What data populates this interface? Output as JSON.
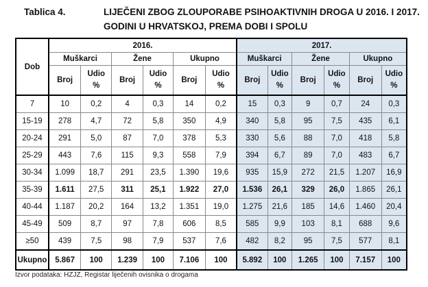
{
  "title": {
    "number": "Tablica 4.",
    "line1": "LIJEČENI ZBOG ZLOUPORABE PSIHOAKTIVNIH DROGA U 2016. I 2017.",
    "line2": "GODINI U HRVATSKOJ, PREMA DOBI I SPOLU"
  },
  "header": {
    "dob": "Dob",
    "years": [
      "2016.",
      "2017."
    ],
    "groups": [
      "Muškarci",
      "Žene",
      "Ukupno"
    ],
    "broj": "Broj",
    "udio": "Udio",
    "pct": "%"
  },
  "highlight_color": "#dce6f1",
  "rows": [
    {
      "dob": "7",
      "v": [
        "10",
        "0,2",
        "4",
        "0,3",
        "14",
        "0,2",
        "15",
        "0,3",
        "9",
        "0,7",
        "24",
        "0,3"
      ]
    },
    {
      "dob": "15-19",
      "v": [
        "278",
        "4,7",
        "72",
        "5,8",
        "350",
        "4,9",
        "340",
        "5,8",
        "95",
        "7,5",
        "435",
        "6,1"
      ]
    },
    {
      "dob": "20-24",
      "v": [
        "291",
        "5,0",
        "87",
        "7,0",
        "378",
        "5,3",
        "330",
        "5,6",
        "88",
        "7,0",
        "418",
        "5,8"
      ]
    },
    {
      "dob": "25-29",
      "v": [
        "443",
        "7,6",
        "115",
        "9,3",
        "558",
        "7,9",
        "394",
        "6,7",
        "89",
        "7,0",
        "483",
        "6,7"
      ]
    },
    {
      "dob": "30-34",
      "v": [
        "1.099",
        "18,7",
        "291",
        "23,5",
        "1.390",
        "19,6",
        "935",
        "15,9",
        "272",
        "21,5",
        "1.207",
        "16,9"
      ]
    },
    {
      "dob": "35-39",
      "v": [
        "1.611",
        "27,5",
        "311",
        "25,1",
        "1.922",
        "27,0",
        "1.536",
        "26,1",
        "329",
        "26,0",
        "1.865",
        "26,1"
      ]
    },
    {
      "dob": "40-44",
      "v": [
        "1.187",
        "20,2",
        "164",
        "13,2",
        "1.351",
        "19,0",
        "1.275",
        "21,6",
        "185",
        "14,6",
        "1.460",
        "20,4"
      ]
    },
    {
      "dob": "45-49",
      "v": [
        "509",
        "8,7",
        "97",
        "7,8",
        "606",
        "8,5",
        "585",
        "9,9",
        "103",
        "8,1",
        "688",
        "9,6"
      ]
    },
    {
      "dob": "≥50",
      "v": [
        "439",
        "7,5",
        "98",
        "7,9",
        "537",
        "7,6",
        "482",
        "8,2",
        "95",
        "7,5",
        "577",
        "8,1"
      ]
    }
  ],
  "bold_cells_35_39": [
    0,
    2,
    3,
    4,
    5,
    6,
    7,
    8,
    9
  ],
  "total": {
    "dob": "Ukupno",
    "v": [
      "5.867",
      "100",
      "1.239",
      "100",
      "7.106",
      "100",
      "5.892",
      "100",
      "1.265",
      "100",
      "7.157",
      "100"
    ]
  },
  "footer": "Izvor podataka: HZJZ, Registar liječenih ovisnika o drogama"
}
